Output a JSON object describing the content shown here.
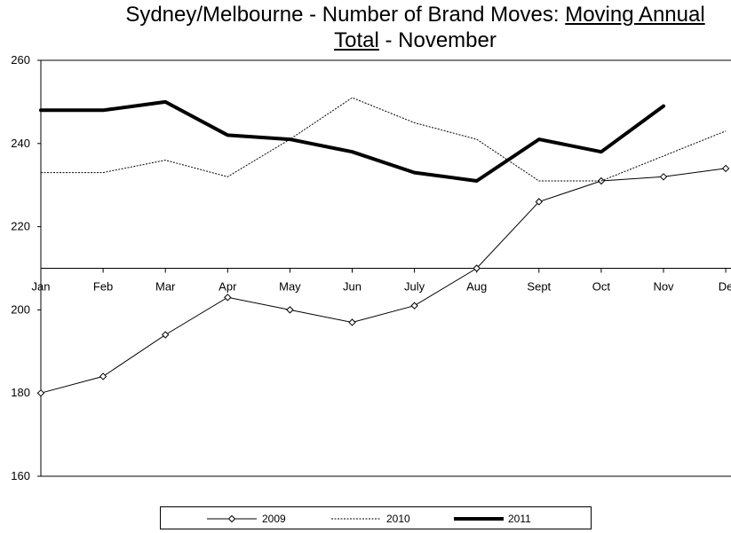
{
  "title": {
    "prefix": "Sydney/Melbourne - Number of Brand Moves: ",
    "underlined_1": "Moving Annual",
    "underlined_2": "Total",
    "suffix": " - November"
  },
  "chart_data": {
    "type": "line",
    "title": "Sydney/Melbourne - Number of Brand Moves: Moving Annual Total - November",
    "categories": [
      "Jan",
      "Feb",
      "Mar",
      "Apr",
      "May",
      "Jun",
      "July",
      "Aug",
      "Sept",
      "Oct",
      "Nov",
      "De"
    ],
    "ylim": [
      160,
      260
    ],
    "yticks": [
      160,
      180,
      200,
      220,
      240,
      260
    ],
    "x_axis_crosses_at": 210,
    "grid": false,
    "legend_position": "bottom",
    "series": [
      {
        "name": "2009",
        "style": "thin-diamond",
        "color": "#000000",
        "values": [
          180,
          184,
          194,
          203,
          200,
          197,
          201,
          210,
          226,
          231,
          232,
          234
        ]
      },
      {
        "name": "2010",
        "style": "dotted",
        "color": "#000000",
        "values": [
          233,
          233,
          236,
          232,
          241,
          251,
          245,
          241,
          231,
          231,
          237,
          243
        ]
      },
      {
        "name": "2011",
        "style": "thick",
        "color": "#000000",
        "values": [
          248,
          248,
          250,
          242,
          241,
          238,
          233,
          231,
          241,
          238,
          249,
          null
        ]
      }
    ]
  }
}
